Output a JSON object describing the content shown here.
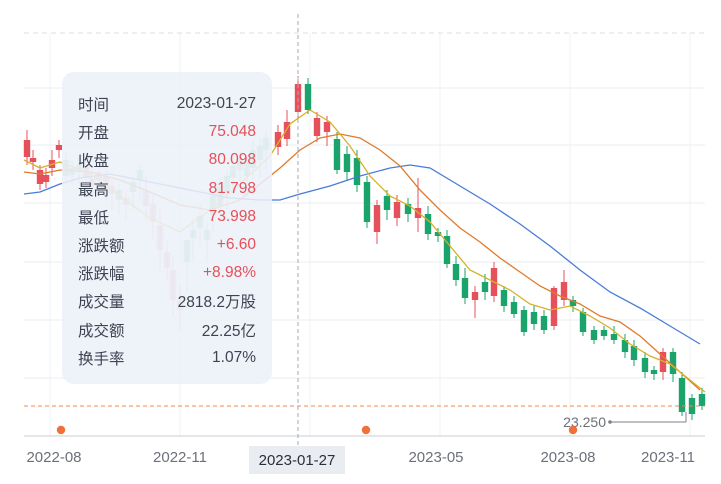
{
  "chart_data": {
    "type": "candlestick",
    "x_ticks": [
      "2022-08",
      "2022-11",
      "2023-05",
      "2023-08",
      "2023-11"
    ],
    "crosshair_date": "2023-01-27",
    "low_marker": "23.250",
    "colors": {
      "up": "#e5505a",
      "down": "#1aa36a",
      "ma_short": "#d8b02a",
      "ma_mid": "#e07a2c",
      "ma_long": "#4a7bd8",
      "dashed_line": "#f08a4a",
      "event_dot": "#f0703a"
    },
    "tooltip": {
      "rows": [
        {
          "label": "时间",
          "value": "2023-01-27",
          "tone": "neutral"
        },
        {
          "label": "开盘",
          "value": "75.048",
          "tone": "up"
        },
        {
          "label": "收盘",
          "value": "80.098",
          "tone": "up"
        },
        {
          "label": "最高",
          "value": "81.798",
          "tone": "up"
        },
        {
          "label": "最低",
          "value": "73.998",
          "tone": "up"
        },
        {
          "label": "涨跌额",
          "value": "+6.60",
          "tone": "up"
        },
        {
          "label": "涨跌幅",
          "value": "+8.98%",
          "tone": "up"
        },
        {
          "label": "成交量",
          "value": "2818.2万股",
          "tone": "neutral"
        },
        {
          "label": "成交额",
          "value": "22.25亿",
          "tone": "neutral"
        },
        {
          "label": "换手率",
          "value": "1.07%",
          "tone": "neutral"
        }
      ]
    }
  }
}
